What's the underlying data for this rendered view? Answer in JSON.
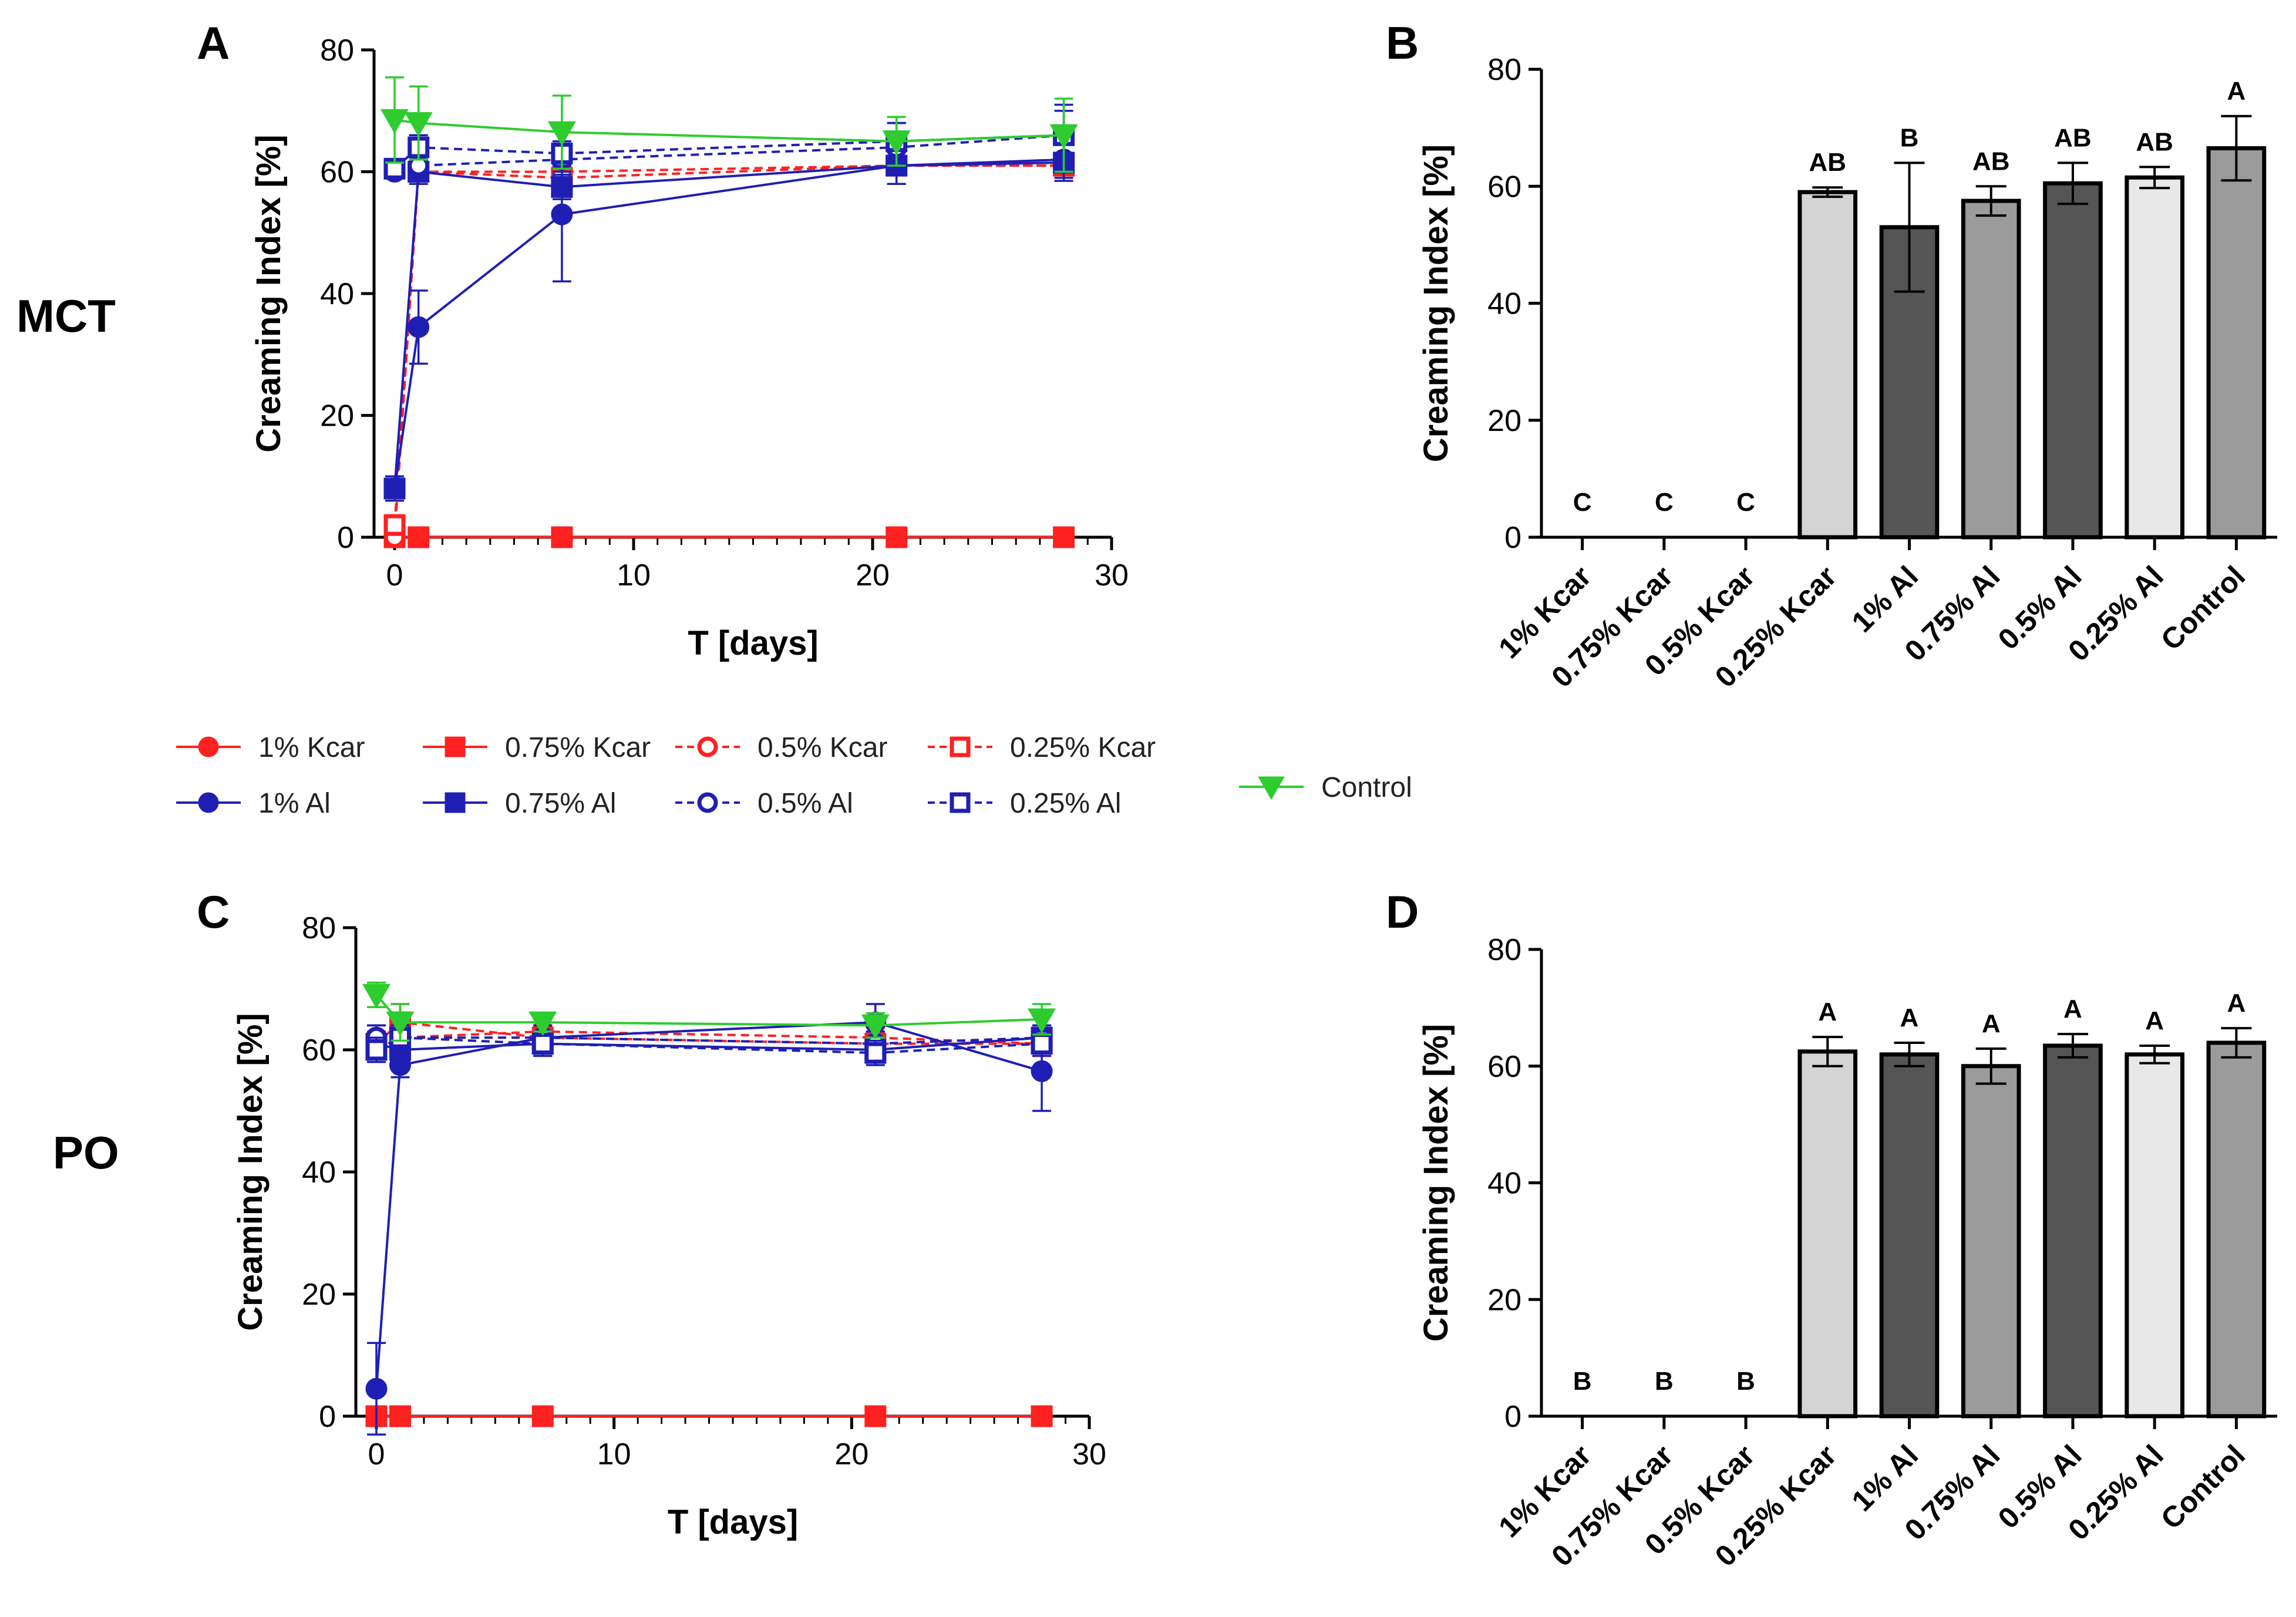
{
  "figure": {
    "row_labels": [
      "MCT",
      "PO"
    ],
    "legend": [
      {
        "label": "1% Kcar",
        "color": "#ff2020",
        "marker": "circle",
        "filled": true
      },
      {
        "label": "0.75% Kcar",
        "color": "#ff2020",
        "marker": "square",
        "filled": true
      },
      {
        "label": "0.5% Kcar",
        "color": "#ff2020",
        "marker": "circle",
        "filled": false
      },
      {
        "label": "0.25% Kcar",
        "color": "#ff2020",
        "marker": "square",
        "filled": false
      },
      {
        "label": "1% Al",
        "color": "#1f1fb4",
        "marker": "circle",
        "filled": true
      },
      {
        "label": "0.75% Al",
        "color": "#1f1fb4",
        "marker": "square",
        "filled": true
      },
      {
        "label": "0.5% Al",
        "color": "#1f1fb4",
        "marker": "circle",
        "filled": false
      },
      {
        "label": "0.25% Al",
        "color": "#1f1fb4",
        "marker": "square",
        "filled": false
      },
      {
        "label": "Control",
        "color": "#2ecc2e",
        "marker": "triangle-down",
        "filled": true
      }
    ]
  },
  "chart_data": [
    {
      "panel": "A",
      "type": "line",
      "row": "MCT",
      "xlabel": "T [days]",
      "ylabel": "Creaming Index [%]",
      "xlim": [
        0,
        30
      ],
      "ylim": [
        0,
        80
      ],
      "xticks": [
        0,
        10,
        20,
        30
      ],
      "yticks": [
        0,
        20,
        40,
        60,
        80
      ],
      "x": [
        0,
        1,
        7,
        21,
        28
      ],
      "series": [
        {
          "name": "1% Kcar",
          "values": [
            0,
            0,
            0,
            0,
            0
          ],
          "errors": [
            0,
            0,
            0,
            0,
            0
          ]
        },
        {
          "name": "0.75% Kcar",
          "values": [
            0,
            0,
            0,
            0,
            0
          ],
          "errors": [
            0,
            0,
            0,
            0,
            0
          ]
        },
        {
          "name": "0.5% Kcar",
          "values": [
            0,
            60,
            60,
            61,
            61
          ],
          "errors": [
            0,
            1,
            1,
            1,
            1
          ]
        },
        {
          "name": "0.25% Kcar",
          "values": [
            2,
            60,
            59,
            61,
            61
          ],
          "errors": [
            0,
            1,
            1,
            1,
            1
          ]
        },
        {
          "name": "1% Al",
          "values": [
            8,
            34.5,
            53,
            61,
            62
          ],
          "errors": [
            2,
            6,
            11,
            3,
            3
          ]
        },
        {
          "name": "0.75% Al",
          "values": [
            8,
            60,
            57.5,
            61,
            61.5
          ],
          "errors": [
            2,
            2,
            2,
            3,
            3
          ]
        },
        {
          "name": "0.5% Al",
          "values": [
            60,
            61,
            62,
            64,
            66
          ],
          "errors": [
            1,
            2,
            2,
            4,
            4
          ]
        },
        {
          "name": "0.25% Al",
          "values": [
            60.5,
            64,
            63,
            65,
            66
          ],
          "errors": [
            1,
            2,
            2,
            3,
            5
          ]
        },
        {
          "name": "Control",
          "values": [
            68.5,
            68,
            66.5,
            65,
            66
          ],
          "errors": [
            7,
            6,
            6,
            4,
            6
          ]
        }
      ]
    },
    {
      "panel": "B",
      "type": "bar",
      "row": "MCT",
      "ylabel": "Creaming Index [%]",
      "ylim": [
        0,
        80
      ],
      "yticks": [
        0,
        20,
        40,
        60,
        80
      ],
      "categories": [
        "1% Kcar",
        "0.75% Kcar",
        "0.5% Kcar",
        "0.25% Kcar",
        "1% Al",
        "0.75% Al",
        "0.5% Al",
        "0.25% Al",
        "Control"
      ],
      "values": [
        0,
        0,
        0,
        59,
        53,
        57.5,
        60.5,
        61.5,
        66.5
      ],
      "errors": [
        0,
        0,
        0,
        0.8,
        11,
        2.5,
        3.5,
        1.8,
        5.5
      ],
      "letters": [
        "C",
        "C",
        "C",
        "AB",
        "B",
        "AB",
        "AB",
        "AB",
        "A"
      ],
      "colors": [
        "#d4d4d4",
        "#d4d4d4",
        "#d4d4d4",
        "#d4d4d4",
        "#555555",
        "#9b9b9b",
        "#555555",
        "#e8e8e8",
        "#9b9b9b"
      ]
    },
    {
      "panel": "C",
      "type": "line",
      "row": "PO",
      "xlabel": "T [days]",
      "ylabel": "Creaming Index [%]",
      "xlim": [
        0,
        30
      ],
      "ylim": [
        0,
        80
      ],
      "xticks": [
        0,
        10,
        20,
        30
      ],
      "yticks": [
        0,
        20,
        40,
        60,
        80
      ],
      "x": [
        0,
        1,
        7,
        21,
        28
      ],
      "series": [
        {
          "name": "1% Kcar",
          "values": [
            0,
            0,
            0,
            0,
            0
          ],
          "errors": [
            0,
            0,
            0,
            0,
            0
          ]
        },
        {
          "name": "0.75% Kcar",
          "values": [
            0,
            0,
            0,
            0,
            0
          ],
          "errors": [
            0,
            0,
            0,
            0,
            0
          ]
        },
        {
          "name": "0.5% Kcar",
          "values": [
            62,
            62,
            63,
            62,
            61
          ],
          "errors": [
            2,
            2,
            2,
            2,
            2
          ]
        },
        {
          "name": "0.25% Kcar",
          "values": [
            61,
            64.5,
            62,
            61,
            61
          ],
          "errors": [
            2,
            3,
            2,
            2,
            2
          ]
        },
        {
          "name": "1% Al",
          "values": [
            4.5,
            57.5,
            62,
            64.5,
            56.5
          ],
          "errors": [
            7.5,
            2,
            2,
            3,
            6.5
          ]
        },
        {
          "name": "0.75% Al",
          "values": [
            61,
            60,
            61,
            60,
            62
          ],
          "errors": [
            3,
            2,
            2,
            2,
            2
          ]
        },
        {
          "name": "0.5% Al",
          "values": [
            62,
            62,
            62,
            61,
            62
          ],
          "errors": [
            2,
            2,
            2,
            2,
            2
          ]
        },
        {
          "name": "0.25% Al",
          "values": [
            60,
            62,
            61,
            59.5,
            61
          ],
          "errors": [
            2,
            2,
            2,
            2,
            2
          ]
        },
        {
          "name": "Control",
          "values": [
            69,
            64.5,
            64.5,
            64,
            65
          ],
          "errors": [
            2,
            3,
            1.5,
            2,
            2.5
          ]
        }
      ]
    },
    {
      "panel": "D",
      "type": "bar",
      "row": "PO",
      "ylabel": "Creaming Index [%]",
      "ylim": [
        0,
        80
      ],
      "yticks": [
        0,
        20,
        40,
        60,
        80
      ],
      "categories": [
        "1% Kcar",
        "0.75% Kcar",
        "0.5% Kcar",
        "0.25% Kcar",
        "1% Al",
        "0.75% Al",
        "0.5% Al",
        "0.25% Al",
        "Control"
      ],
      "values": [
        0,
        0,
        0,
        62.5,
        62,
        60,
        63.5,
        62,
        64
      ],
      "errors": [
        0,
        0,
        0,
        2.5,
        2,
        3,
        2,
        1.5,
        2.5
      ],
      "letters": [
        "B",
        "B",
        "B",
        "A",
        "A",
        "A",
        "A",
        "A",
        "A"
      ],
      "colors": [
        "#d4d4d4",
        "#d4d4d4",
        "#d4d4d4",
        "#d4d4d4",
        "#555555",
        "#9b9b9b",
        "#555555",
        "#e8e8e8",
        "#9b9b9b"
      ]
    }
  ]
}
